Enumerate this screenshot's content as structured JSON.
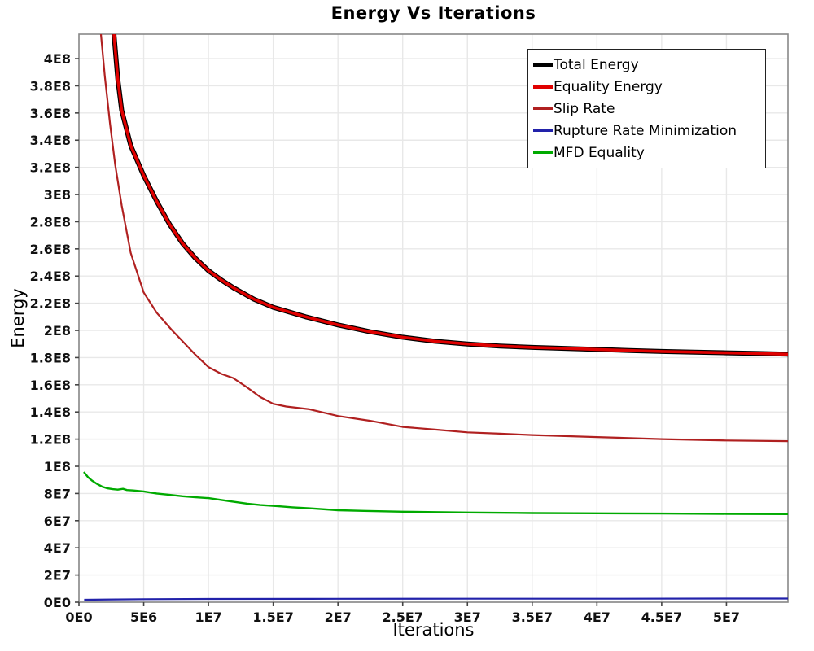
{
  "title": "Energy Vs Iterations",
  "colors": {
    "background": "#ffffff",
    "grid": "#e8e8e8",
    "frame": "#888888",
    "tick": "#444444",
    "tick_text": "#111111",
    "legend_border": "#222222"
  },
  "chart_data": {
    "type": "line",
    "title": "Energy Vs Iterations",
    "xlabel": "Iterations",
    "ylabel": "Energy",
    "xlim": [
      0,
      54750000
    ],
    "ylim": [
      0,
      418000000
    ],
    "grid": true,
    "legend_position": "top-right",
    "x_ticks": [
      {
        "v": 0,
        "label": "0E0"
      },
      {
        "v": 5000000,
        "label": "5E6"
      },
      {
        "v": 10000000,
        "label": "1E7"
      },
      {
        "v": 15000000,
        "label": "1.5E7"
      },
      {
        "v": 20000000,
        "label": "2E7"
      },
      {
        "v": 25000000,
        "label": "2.5E7"
      },
      {
        "v": 30000000,
        "label": "3E7"
      },
      {
        "v": 35000000,
        "label": "3.5E7"
      },
      {
        "v": 40000000,
        "label": "4E7"
      },
      {
        "v": 45000000,
        "label": "4.5E7"
      },
      {
        "v": 50000000,
        "label": "5E7"
      }
    ],
    "y_ticks": [
      {
        "v": 0,
        "label": "0E0"
      },
      {
        "v": 20000000,
        "label": "2E7"
      },
      {
        "v": 40000000,
        "label": "4E7"
      },
      {
        "v": 60000000,
        "label": "6E7"
      },
      {
        "v": 80000000,
        "label": "8E7"
      },
      {
        "v": 100000000,
        "label": "1E8"
      },
      {
        "v": 120000000,
        "label": "1.2E8"
      },
      {
        "v": 140000000,
        "label": "1.4E8"
      },
      {
        "v": 160000000,
        "label": "1.6E8"
      },
      {
        "v": 180000000,
        "label": "1.8E8"
      },
      {
        "v": 200000000,
        "label": "2E8"
      },
      {
        "v": 220000000,
        "label": "2.2E8"
      },
      {
        "v": 240000000,
        "label": "2.4E8"
      },
      {
        "v": 260000000,
        "label": "2.6E8"
      },
      {
        "v": 280000000,
        "label": "2.8E8"
      },
      {
        "v": 300000000,
        "label": "3E8"
      },
      {
        "v": 320000000,
        "label": "3.2E8"
      },
      {
        "v": 340000000,
        "label": "3.4E8"
      },
      {
        "v": 360000000,
        "label": "3.6E8"
      },
      {
        "v": 380000000,
        "label": "3.8E8"
      },
      {
        "v": 400000000,
        "label": "4E8"
      }
    ],
    "series": [
      {
        "name": "Total Energy",
        "color": "#000000",
        "width": 6,
        "x": [
          2700000,
          3000000,
          3300000,
          4000000,
          5000000,
          6000000,
          7000000,
          8000000,
          9000000,
          10000000,
          11000000,
          12000000,
          13500000,
          15000000,
          17500000,
          20000000,
          22500000,
          25000000,
          27500000,
          30000000,
          32500000,
          35000000,
          37500000,
          40000000,
          42500000,
          45000000,
          47500000,
          50000000,
          52500000,
          54750000
        ],
        "y": [
          418000000,
          385000000,
          362000000,
          336000000,
          314000000,
          295000000,
          278000000,
          264000000,
          253000000,
          244000000,
          237000000,
          231000000,
          223000000,
          217000000,
          210000000,
          204000000,
          199000000,
          195000000,
          192000000,
          190000000,
          188500000,
          187500000,
          186800000,
          186000000,
          185200000,
          184500000,
          184000000,
          183500000,
          183000000,
          182500000
        ]
      },
      {
        "name": "Equality Energy",
        "color": "#e00000",
        "width": 3.6,
        "x": [
          2700000,
          3000000,
          3300000,
          4000000,
          5000000,
          6000000,
          7000000,
          8000000,
          9000000,
          10000000,
          11000000,
          12000000,
          13500000,
          15000000,
          17500000,
          20000000,
          22500000,
          25000000,
          27500000,
          30000000,
          32500000,
          35000000,
          37500000,
          40000000,
          42500000,
          45000000,
          47500000,
          50000000,
          52500000,
          54750000
        ],
        "y": [
          418000000,
          385000000,
          362000000,
          336000000,
          314000000,
          295000000,
          278000000,
          264000000,
          253000000,
          244000000,
          237000000,
          231000000,
          223000000,
          217000000,
          210000000,
          204000000,
          199000000,
          195000000,
          192000000,
          190000000,
          188500000,
          187500000,
          186800000,
          186000000,
          185200000,
          184500000,
          184000000,
          183500000,
          183000000,
          182500000
        ]
      },
      {
        "name": "Slip Rate",
        "color": "#b02020",
        "width": 2.2,
        "x": [
          1700000,
          2000000,
          2400000,
          2800000,
          3300000,
          4000000,
          5000000,
          6000000,
          7200000,
          8000000,
          9000000,
          10000000,
          11000000,
          11900000,
          13000000,
          14000000,
          15000000,
          16000000,
          17800000,
          20000000,
          22500000,
          25000000,
          27500000,
          30000000,
          32500000,
          35000000,
          40000000,
          45000000,
          50000000,
          54750000
        ],
        "y": [
          418000000,
          387000000,
          352000000,
          322000000,
          292000000,
          257000000,
          228000000,
          213000000,
          200000000,
          192000000,
          182000000,
          173000000,
          168000000,
          165000000,
          158000000,
          151000000,
          146000000,
          144000000,
          142000000,
          137000000,
          133500000,
          129000000,
          127000000,
          125000000,
          124000000,
          123000000,
          121500000,
          120000000,
          119000000,
          118500000
        ]
      },
      {
        "name": "Rupture Rate Minimization",
        "color": "#2222aa",
        "width": 2.2,
        "x": [
          400000,
          5000000,
          10000000,
          20000000,
          30000000,
          40000000,
          50000000,
          54750000
        ],
        "y": [
          1800000,
          2200000,
          2400000,
          2500000,
          2600000,
          2600000,
          2700000,
          2700000
        ]
      },
      {
        "name": "MFD Equality",
        "color": "#00aa00",
        "width": 2.4,
        "x": [
          380000,
          700000,
          1000000,
          1400000,
          1800000,
          2200000,
          2600000,
          3000000,
          3400000,
          3700000,
          4200000,
          5000000,
          6000000,
          7000000,
          8000000,
          9000000,
          10000000,
          11500000,
          13000000,
          14000000,
          15300000,
          16500000,
          18000000,
          20000000,
          22000000,
          25000000,
          27500000,
          30000000,
          35000000,
          40000000,
          45000000,
          50000000,
          54750000
        ],
        "y": [
          95800000,
          92000000,
          89500000,
          87000000,
          85000000,
          83800000,
          83200000,
          82800000,
          83400000,
          82500000,
          82200000,
          81500000,
          80000000,
          79000000,
          78000000,
          77200000,
          76600000,
          74500000,
          72500000,
          71500000,
          70700000,
          69800000,
          69000000,
          67700000,
          67200000,
          66600000,
          66300000,
          66000000,
          65600000,
          65400000,
          65200000,
          65000000,
          64800000
        ]
      }
    ]
  }
}
